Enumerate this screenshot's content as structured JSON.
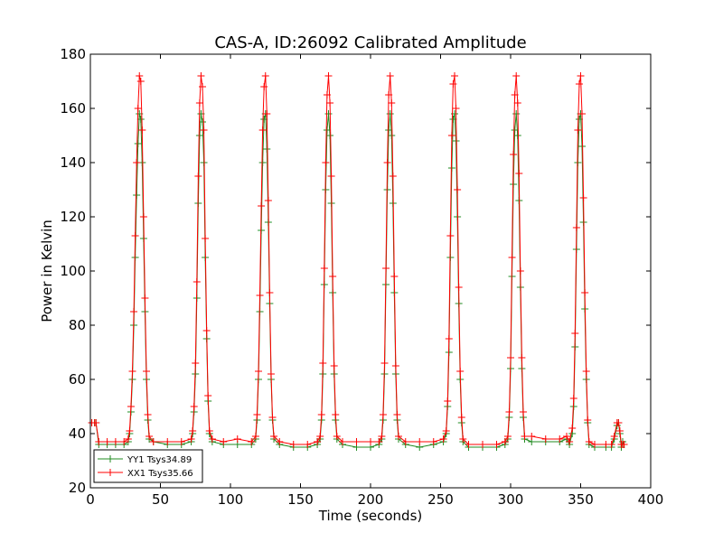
{
  "chart_data": {
    "type": "line",
    "title": "CAS-A, ID:26092 Calibrated Amplitude",
    "xlabel": "Time (seconds)",
    "ylabel": "Power in Kelvin",
    "xlim": [
      0,
      400
    ],
    "ylim": [
      20,
      180
    ],
    "xticks": [
      0,
      50,
      100,
      150,
      200,
      250,
      300,
      350,
      400
    ],
    "yticks": [
      20,
      40,
      60,
      80,
      100,
      120,
      140,
      160,
      180
    ],
    "grid": false,
    "legend_position": "lower-left",
    "series": [
      {
        "name": "YY1 Tsys34.89",
        "color": "#228b22",
        "marker": "plus",
        "points": [
          [
            1,
            44
          ],
          [
            3,
            44
          ],
          [
            4,
            44
          ],
          [
            6,
            36
          ],
          [
            12,
            36
          ],
          [
            18,
            36
          ],
          [
            24,
            36
          ],
          [
            27,
            37
          ],
          [
            28,
            40
          ],
          [
            29,
            48
          ],
          [
            30,
            60
          ],
          [
            31,
            80
          ],
          [
            32,
            105
          ],
          [
            33,
            128
          ],
          [
            34,
            147
          ],
          [
            35,
            158
          ],
          [
            36,
            156
          ],
          [
            37,
            140
          ],
          [
            38,
            112
          ],
          [
            39,
            85
          ],
          [
            40,
            60
          ],
          [
            41,
            45
          ],
          [
            42,
            38
          ],
          [
            45,
            37
          ],
          [
            55,
            36
          ],
          [
            65,
            36
          ],
          [
            72,
            37
          ],
          [
            73,
            40
          ],
          [
            74,
            48
          ],
          [
            75,
            62
          ],
          [
            76,
            90
          ],
          [
            77,
            125
          ],
          [
            78,
            150
          ],
          [
            79,
            158
          ],
          [
            80,
            155
          ],
          [
            81,
            140
          ],
          [
            82,
            105
          ],
          [
            83,
            75
          ],
          [
            84,
            52
          ],
          [
            85,
            40
          ],
          [
            87,
            37
          ],
          [
            95,
            36
          ],
          [
            105,
            36
          ],
          [
            115,
            36
          ],
          [
            118,
            38
          ],
          [
            119,
            45
          ],
          [
            120,
            60
          ],
          [
            121,
            85
          ],
          [
            122,
            115
          ],
          [
            123,
            140
          ],
          [
            124,
            156
          ],
          [
            125,
            158
          ],
          [
            126,
            145
          ],
          [
            127,
            118
          ],
          [
            128,
            88
          ],
          [
            129,
            60
          ],
          [
            130,
            45
          ],
          [
            131,
            38
          ],
          [
            135,
            36
          ],
          [
            145,
            35
          ],
          [
            155,
            35
          ],
          [
            162,
            36
          ],
          [
            164,
            38
          ],
          [
            165,
            45
          ],
          [
            166,
            62
          ],
          [
            167,
            95
          ],
          [
            168,
            130
          ],
          [
            169,
            152
          ],
          [
            170,
            158
          ],
          [
            171,
            150
          ],
          [
            172,
            125
          ],
          [
            173,
            92
          ],
          [
            174,
            62
          ],
          [
            175,
            45
          ],
          [
            176,
            38
          ],
          [
            180,
            36
          ],
          [
            190,
            35
          ],
          [
            200,
            35
          ],
          [
            206,
            36
          ],
          [
            208,
            38
          ],
          [
            209,
            45
          ],
          [
            210,
            62
          ],
          [
            211,
            95
          ],
          [
            212,
            130
          ],
          [
            213,
            152
          ],
          [
            214,
            158
          ],
          [
            215,
            150
          ],
          [
            216,
            125
          ],
          [
            217,
            92
          ],
          [
            218,
            62
          ],
          [
            219,
            45
          ],
          [
            220,
            38
          ],
          [
            225,
            36
          ],
          [
            235,
            35
          ],
          [
            245,
            36
          ],
          [
            252,
            37
          ],
          [
            254,
            40
          ],
          [
            255,
            50
          ],
          [
            256,
            70
          ],
          [
            257,
            105
          ],
          [
            258,
            138
          ],
          [
            259,
            156
          ],
          [
            260,
            158
          ],
          [
            261,
            148
          ],
          [
            262,
            120
          ],
          [
            263,
            88
          ],
          [
            264,
            60
          ],
          [
            265,
            44
          ],
          [
            266,
            37
          ],
          [
            270,
            35
          ],
          [
            280,
            35
          ],
          [
            290,
            35
          ],
          [
            296,
            36
          ],
          [
            298,
            38
          ],
          [
            299,
            46
          ],
          [
            300,
            64
          ],
          [
            301,
            98
          ],
          [
            302,
            132
          ],
          [
            303,
            152
          ],
          [
            304,
            158
          ],
          [
            305,
            150
          ],
          [
            306,
            126
          ],
          [
            307,
            94
          ],
          [
            308,
            64
          ],
          [
            309,
            46
          ],
          [
            310,
            38
          ],
          [
            315,
            37
          ],
          [
            325,
            37
          ],
          [
            335,
            37
          ],
          [
            340,
            38
          ],
          [
            342,
            36
          ],
          [
            344,
            40
          ],
          [
            345,
            50
          ],
          [
            346,
            72
          ],
          [
            347,
            108
          ],
          [
            348,
            140
          ],
          [
            349,
            156
          ],
          [
            350,
            158
          ],
          [
            351,
            146
          ],
          [
            352,
            118
          ],
          [
            353,
            86
          ],
          [
            354,
            60
          ],
          [
            355,
            44
          ],
          [
            356,
            36
          ],
          [
            360,
            35
          ],
          [
            368,
            35
          ],
          [
            372,
            35
          ],
          [
            374,
            38
          ],
          [
            376,
            43
          ],
          [
            377,
            44
          ],
          [
            378,
            40
          ],
          [
            379,
            35
          ],
          [
            380,
            37
          ],
          [
            381,
            36
          ]
        ]
      },
      {
        "name": "XX1 Tsys35.66",
        "color": "#ff0000",
        "marker": "plus",
        "points": [
          [
            1,
            44
          ],
          [
            3,
            44
          ],
          [
            4,
            44
          ],
          [
            6,
            37
          ],
          [
            12,
            37
          ],
          [
            18,
            37
          ],
          [
            24,
            37
          ],
          [
            27,
            38
          ],
          [
            28,
            41
          ],
          [
            29,
            50
          ],
          [
            30,
            63
          ],
          [
            31,
            85
          ],
          [
            32,
            113
          ],
          [
            33,
            140
          ],
          [
            34,
            160
          ],
          [
            35,
            172
          ],
          [
            36,
            170
          ],
          [
            37,
            152
          ],
          [
            38,
            120
          ],
          [
            39,
            90
          ],
          [
            40,
            63
          ],
          [
            41,
            47
          ],
          [
            42,
            39
          ],
          [
            45,
            37
          ],
          [
            55,
            37
          ],
          [
            65,
            37
          ],
          [
            72,
            38
          ],
          [
            73,
            41
          ],
          [
            74,
            50
          ],
          [
            75,
            66
          ],
          [
            76,
            96
          ],
          [
            77,
            135
          ],
          [
            78,
            162
          ],
          [
            79,
            172
          ],
          [
            80,
            168
          ],
          [
            81,
            152
          ],
          [
            82,
            112
          ],
          [
            83,
            78
          ],
          [
            84,
            54
          ],
          [
            85,
            41
          ],
          [
            87,
            38
          ],
          [
            95,
            37
          ],
          [
            105,
            38
          ],
          [
            115,
            37
          ],
          [
            118,
            39
          ],
          [
            119,
            47
          ],
          [
            120,
            63
          ],
          [
            121,
            91
          ],
          [
            122,
            124
          ],
          [
            123,
            152
          ],
          [
            124,
            168
          ],
          [
            125,
            172
          ],
          [
            126,
            158
          ],
          [
            127,
            126
          ],
          [
            128,
            92
          ],
          [
            129,
            62
          ],
          [
            130,
            46
          ],
          [
            131,
            39
          ],
          [
            135,
            37
          ],
          [
            145,
            36
          ],
          [
            155,
            36
          ],
          [
            162,
            37
          ],
          [
            164,
            39
          ],
          [
            165,
            47
          ],
          [
            166,
            66
          ],
          [
            167,
            101
          ],
          [
            168,
            140
          ],
          [
            169,
            165
          ],
          [
            170,
            172
          ],
          [
            171,
            162
          ],
          [
            172,
            135
          ],
          [
            173,
            98
          ],
          [
            174,
            65
          ],
          [
            175,
            47
          ],
          [
            176,
            39
          ],
          [
            180,
            37
          ],
          [
            190,
            37
          ],
          [
            200,
            37
          ],
          [
            206,
            37
          ],
          [
            208,
            39
          ],
          [
            209,
            47
          ],
          [
            210,
            66
          ],
          [
            211,
            101
          ],
          [
            212,
            140
          ],
          [
            213,
            165
          ],
          [
            214,
            172
          ],
          [
            215,
            162
          ],
          [
            216,
            135
          ],
          [
            217,
            98
          ],
          [
            218,
            65
          ],
          [
            219,
            47
          ],
          [
            220,
            39
          ],
          [
            225,
            37
          ],
          [
            235,
            37
          ],
          [
            245,
            37
          ],
          [
            252,
            38
          ],
          [
            254,
            41
          ],
          [
            255,
            52
          ],
          [
            256,
            75
          ],
          [
            257,
            113
          ],
          [
            258,
            150
          ],
          [
            259,
            169
          ],
          [
            260,
            172
          ],
          [
            261,
            160
          ],
          [
            262,
            130
          ],
          [
            263,
            94
          ],
          [
            264,
            63
          ],
          [
            265,
            46
          ],
          [
            266,
            38
          ],
          [
            270,
            36
          ],
          [
            280,
            36
          ],
          [
            290,
            36
          ],
          [
            296,
            37
          ],
          [
            298,
            39
          ],
          [
            299,
            48
          ],
          [
            300,
            68
          ],
          [
            301,
            105
          ],
          [
            302,
            143
          ],
          [
            303,
            165
          ],
          [
            304,
            172
          ],
          [
            305,
            162
          ],
          [
            306,
            136
          ],
          [
            307,
            100
          ],
          [
            308,
            68
          ],
          [
            309,
            48
          ],
          [
            310,
            39
          ],
          [
            315,
            39
          ],
          [
            325,
            38
          ],
          [
            335,
            38
          ],
          [
            340,
            39
          ],
          [
            342,
            37
          ],
          [
            344,
            42
          ],
          [
            345,
            53
          ],
          [
            346,
            77
          ],
          [
            347,
            116
          ],
          [
            348,
            152
          ],
          [
            349,
            169
          ],
          [
            350,
            172
          ],
          [
            351,
            158
          ],
          [
            352,
            127
          ],
          [
            353,
            92
          ],
          [
            354,
            63
          ],
          [
            355,
            45
          ],
          [
            356,
            37
          ],
          [
            360,
            36
          ],
          [
            368,
            36
          ],
          [
            372,
            36
          ],
          [
            374,
            39
          ],
          [
            376,
            44
          ],
          [
            377,
            44
          ],
          [
            378,
            41
          ],
          [
            379,
            36
          ],
          [
            380,
            36
          ],
          [
            381,
            36
          ]
        ]
      }
    ]
  }
}
